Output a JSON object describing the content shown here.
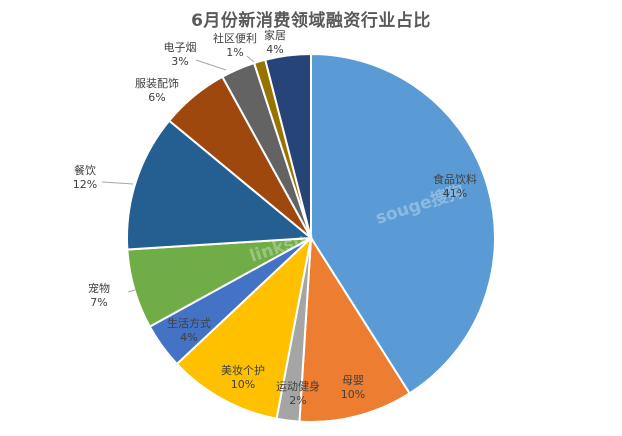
{
  "watermarks": [
    "souge搜狗",
    "linksu"
  ],
  "chart_data": {
    "type": "pie",
    "title": "6月份新消费领域融资行业占比",
    "start_angle_deg": 0,
    "direction": "clockwise",
    "slices": [
      {
        "name": "食品饮料",
        "value": 41,
        "label": "41%",
        "color": "#5B9BD5"
      },
      {
        "name": "母婴",
        "value": 10,
        "label": "10%",
        "color": "#ED7D31"
      },
      {
        "name": "运动健身",
        "value": 2,
        "label": "2%",
        "color": "#A5A5A5"
      },
      {
        "name": "美妆个护",
        "value": 10,
        "label": "10%",
        "color": "#FFC000"
      },
      {
        "name": "生活方式",
        "value": 4,
        "label": "4%",
        "color": "#4472C4"
      },
      {
        "name": "宠物",
        "value": 7,
        "label": "7%",
        "color": "#70AD47"
      },
      {
        "name": "餐饮",
        "value": 12,
        "label": "12%",
        "color": "#255E91"
      },
      {
        "name": "服装配饰",
        "value": 6,
        "label": "6%",
        "color": "#9E480E"
      },
      {
        "name": "电子烟",
        "value": 3,
        "label": "3%",
        "color": "#636363"
      },
      {
        "name": "社区便利",
        "value": 1,
        "label": "1%",
        "color": "#997300"
      },
      {
        "name": "家居",
        "value": 4,
        "label": "4%",
        "color": "#264478"
      }
    ]
  }
}
